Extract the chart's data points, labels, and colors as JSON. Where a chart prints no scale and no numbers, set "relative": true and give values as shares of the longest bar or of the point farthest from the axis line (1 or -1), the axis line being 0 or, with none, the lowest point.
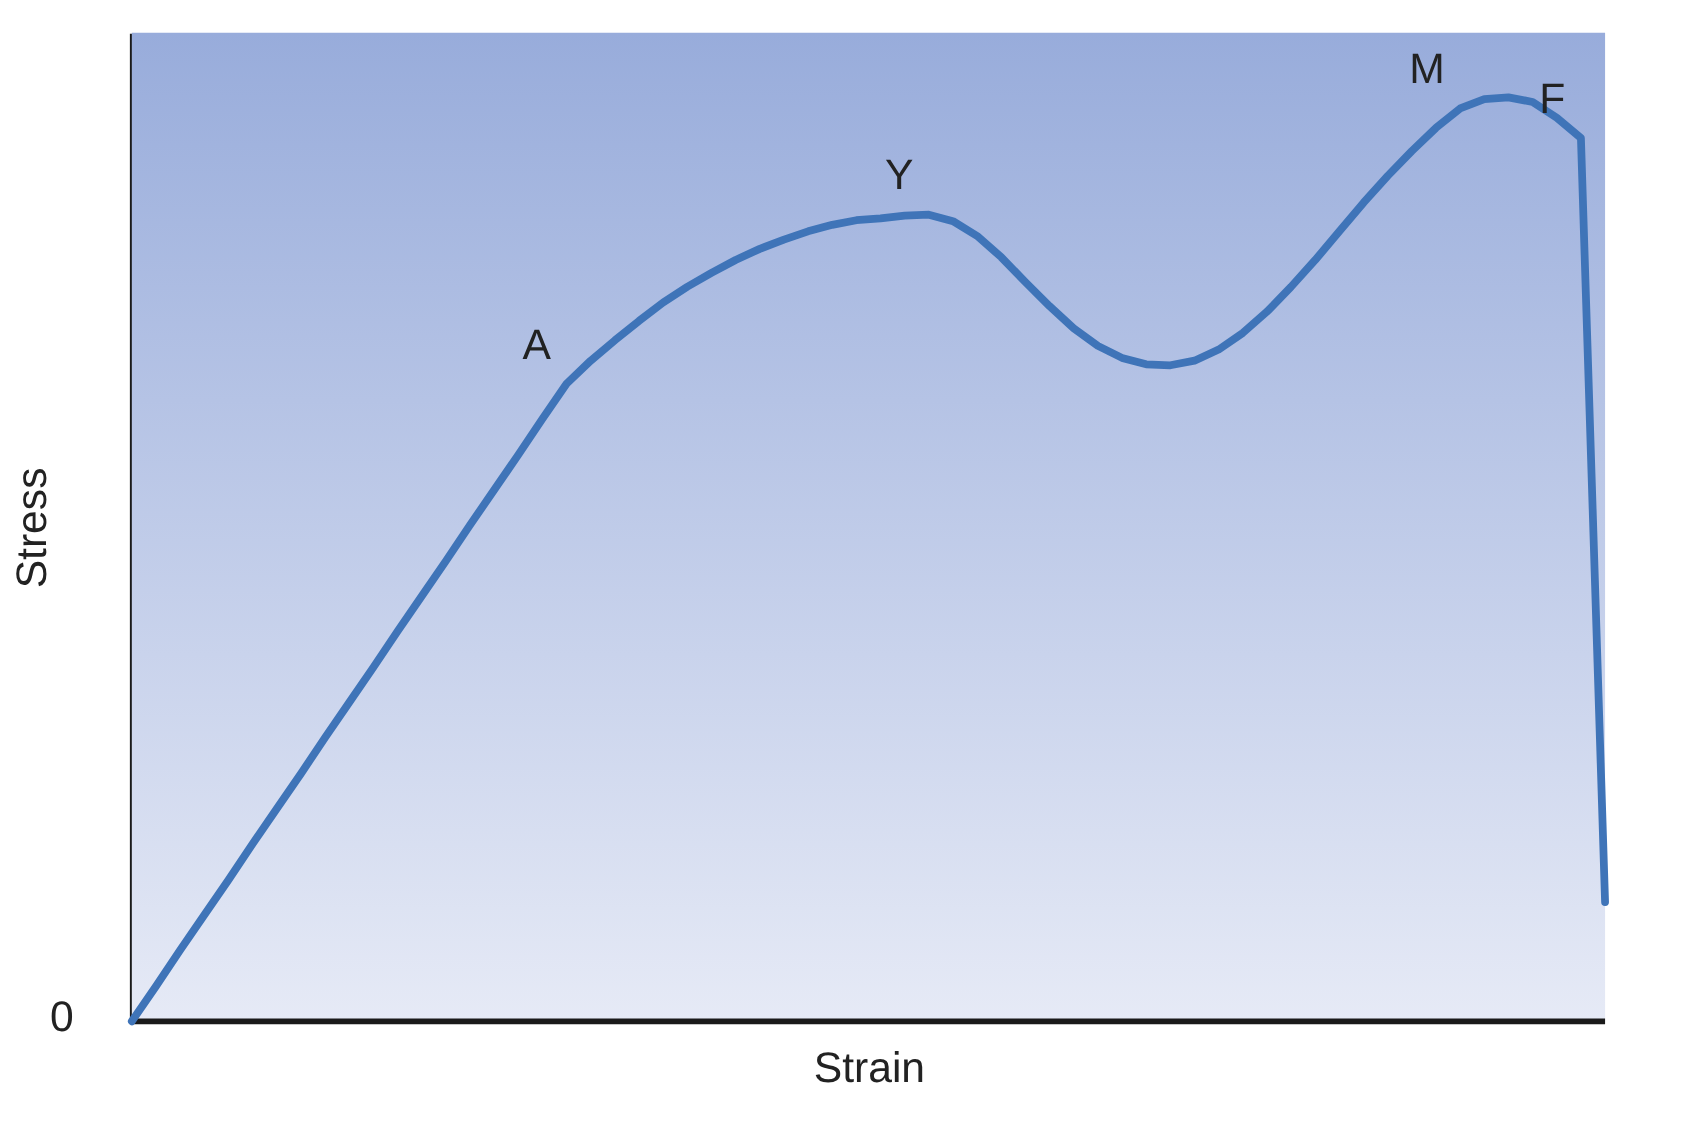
{
  "chart_data": {
    "type": "line",
    "relative": true,
    "xlabel": "Strain",
    "ylabel": "Stress",
    "categories": [
      null,
      null,
      null,
      null,
      null,
      null,
      null,
      null,
      null,
      null,
      null,
      null,
      null,
      null,
      null,
      null,
      null,
      null,
      null,
      null,
      null,
      null,
      null,
      null,
      null,
      null,
      null,
      null,
      null,
      null,
      null,
      null,
      null,
      null,
      null,
      null,
      null,
      null,
      null,
      null,
      null,
      null,
      null,
      null,
      null,
      null,
      null,
      null,
      null,
      null,
      null,
      null,
      null,
      null,
      null,
      null,
      null,
      null,
      null,
      null,
      null,
      null
    ],
    "series": [
      {
        "color": "#3f74b8",
        "values": [
          0,
          0.038,
          0.077,
          0.115,
          0.153,
          0.192,
          0.23,
          0.268,
          0.307,
          0.345,
          0.383,
          0.422,
          0.46,
          0.498,
          0.537,
          0.575,
          0.613,
          0.652,
          0.69,
          0.715,
          0.737,
          0.758,
          0.778,
          0.795,
          0.81,
          0.824,
          0.836,
          0.846,
          0.855,
          0.862,
          0.867,
          0.869,
          0.872,
          0.873,
          0.866,
          0.85,
          0.827,
          0.8,
          0.774,
          0.75,
          0.731,
          0.718,
          0.711,
          0.71,
          0.715,
          0.727,
          0.745,
          0.768,
          0.795,
          0.824,
          0.855,
          0.886,
          0.915,
          0.942,
          0.967,
          0.988,
          0.998,
          1,
          0.995,
          0.978,
          0.956,
          0.129
        ]
      }
    ],
    "annotations": [
      "A",
      "Y",
      "M",
      "F",
      "0"
    ]
  }
}
